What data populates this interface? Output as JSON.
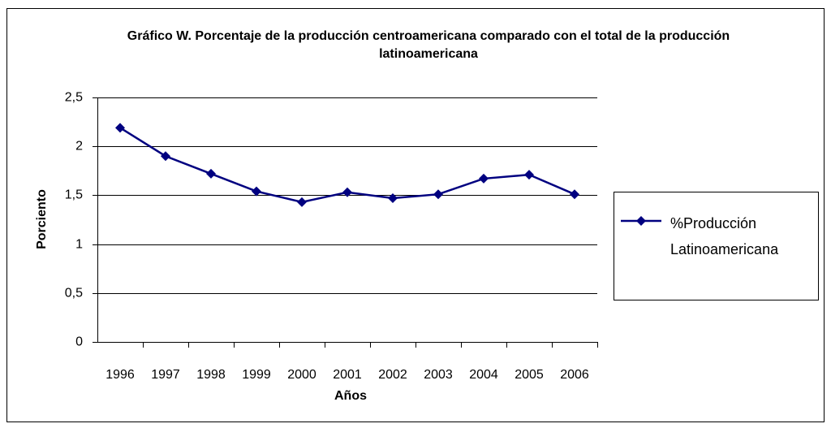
{
  "chart_data": {
    "type": "line",
    "title": "Gráfico W. Porcentaje de la producción centroamericana comparado con el total de la producción latinoamericana",
    "x_label": "Años",
    "y_label": "Porciento",
    "categories": [
      "1996",
      "1997",
      "1998",
      "1999",
      "2000",
      "2001",
      "2002",
      "2003",
      "2004",
      "2005",
      "2006"
    ],
    "series": [
      {
        "name": "%Producción Latinoamericana",
        "color": "#000080",
        "values": [
          2.19,
          1.9,
          1.72,
          1.54,
          1.43,
          1.53,
          1.47,
          1.51,
          1.67,
          1.71,
          1.51
        ]
      }
    ],
    "ylim": [
      0,
      2.5
    ],
    "yticks": [
      0,
      {
        "value": 0.5,
        "label": "0,5"
      },
      1,
      {
        "value": 1.5,
        "label": "1,5"
      },
      2,
      {
        "value": 2.5,
        "label": "2,5"
      }
    ],
    "grid": true,
    "legend": "right"
  }
}
